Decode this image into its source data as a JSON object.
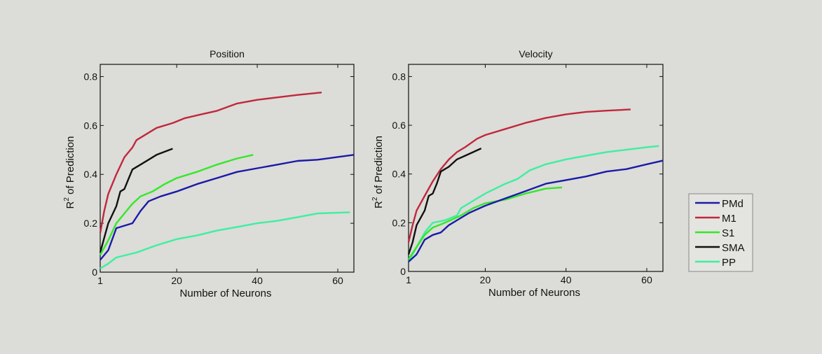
{
  "colors": {
    "PMd": "#1a1aa8",
    "M1": "#c0283c",
    "S1": "#33e82a",
    "SMA": "#111111",
    "PP": "#3cf0a0"
  },
  "legend": {
    "placement": "right",
    "entries": [
      "PMd",
      "M1",
      "S1",
      "SMA",
      "PP"
    ]
  },
  "chart_data": [
    {
      "type": "line",
      "title": "Position",
      "xlabel": "Number of Neurons",
      "ylabel": "R2 of Prediction",
      "ylabel_main": "R",
      "ylabel_sup": "2",
      "ylabel_rest": " of Prediction",
      "xlim": [
        1,
        64
      ],
      "ylim": [
        0,
        0.85
      ],
      "xticks": [
        1,
        20,
        40,
        60
      ],
      "yticks": [
        0,
        0.2,
        0.4,
        0.6,
        0.8
      ],
      "xtick_labels": [
        "1",
        "20",
        "40",
        "60"
      ],
      "ytick_labels": [
        "0",
        "0.2",
        "0.4",
        "0.6",
        "0.8"
      ],
      "grid": false,
      "series": [
        {
          "name": "M1",
          "x": [
            1,
            2,
            3,
            5,
            7,
            9,
            10,
            12,
            15,
            19,
            22,
            26,
            30,
            35,
            40,
            45,
            50,
            56
          ],
          "y": [
            0.16,
            0.25,
            0.32,
            0.4,
            0.47,
            0.51,
            0.54,
            0.56,
            0.59,
            0.61,
            0.63,
            0.645,
            0.66,
            0.69,
            0.705,
            0.715,
            0.725,
            0.735
          ]
        },
        {
          "name": "SMA",
          "x": [
            1,
            2,
            3,
            5,
            6,
            7,
            8,
            9,
            11,
            13,
            15,
            19
          ],
          "y": [
            0.08,
            0.14,
            0.2,
            0.27,
            0.33,
            0.34,
            0.38,
            0.42,
            0.44,
            0.46,
            0.48,
            0.505
          ]
        },
        {
          "name": "S1",
          "x": [
            1,
            3,
            5,
            7,
            9,
            11,
            14,
            17,
            20,
            25,
            30,
            35,
            39
          ],
          "y": [
            0.07,
            0.13,
            0.2,
            0.24,
            0.28,
            0.31,
            0.33,
            0.36,
            0.385,
            0.41,
            0.44,
            0.465,
            0.48
          ]
        },
        {
          "name": "PMd",
          "x": [
            1,
            3,
            5,
            7,
            9,
            11,
            13,
            16,
            20,
            25,
            30,
            35,
            40,
            45,
            50,
            55,
            64
          ],
          "y": [
            0.05,
            0.09,
            0.18,
            0.19,
            0.2,
            0.25,
            0.29,
            0.31,
            0.33,
            0.36,
            0.385,
            0.41,
            0.425,
            0.44,
            0.455,
            0.46,
            0.48
          ]
        },
        {
          "name": "PP",
          "x": [
            1,
            3,
            5,
            10,
            15,
            20,
            25,
            30,
            35,
            40,
            45,
            50,
            55,
            63
          ],
          "y": [
            0.015,
            0.035,
            0.06,
            0.08,
            0.11,
            0.135,
            0.15,
            0.17,
            0.185,
            0.2,
            0.21,
            0.225,
            0.24,
            0.245
          ]
        }
      ]
    },
    {
      "type": "line",
      "title": "Velocity",
      "xlabel": "Number of Neurons",
      "ylabel": "R2 of Prediction",
      "ylabel_main": "R",
      "ylabel_sup": "2",
      "ylabel_rest": " of Prediction",
      "xlim": [
        1,
        64
      ],
      "ylim": [
        0,
        0.85
      ],
      "xticks": [
        1,
        20,
        40,
        60
      ],
      "yticks": [
        0,
        0.2,
        0.4,
        0.6,
        0.8
      ],
      "xtick_labels": [
        "1",
        "20",
        "40",
        "60"
      ],
      "ytick_labels": [
        "0",
        "0.2",
        "0.4",
        "0.6",
        "0.8"
      ],
      "grid": false,
      "series": [
        {
          "name": "M1",
          "x": [
            1,
            2,
            3,
            5,
            7,
            9,
            11,
            13,
            15,
            18,
            20,
            25,
            30,
            35,
            40,
            45,
            50,
            56
          ],
          "y": [
            0.12,
            0.19,
            0.25,
            0.31,
            0.37,
            0.42,
            0.46,
            0.49,
            0.51,
            0.545,
            0.56,
            0.585,
            0.61,
            0.63,
            0.645,
            0.655,
            0.66,
            0.665
          ]
        },
        {
          "name": "SMA",
          "x": [
            1,
            2,
            3,
            5,
            6,
            7,
            8,
            9,
            11,
            13,
            15,
            17,
            19
          ],
          "y": [
            0.07,
            0.12,
            0.19,
            0.25,
            0.31,
            0.32,
            0.36,
            0.41,
            0.43,
            0.46,
            0.475,
            0.49,
            0.505
          ]
        },
        {
          "name": "PP",
          "x": [
            1,
            3,
            5,
            7,
            10,
            13,
            14,
            17,
            20,
            25,
            28,
            31,
            35,
            40,
            45,
            50,
            55,
            60,
            63
          ],
          "y": [
            0.04,
            0.1,
            0.16,
            0.2,
            0.21,
            0.23,
            0.26,
            0.29,
            0.32,
            0.36,
            0.38,
            0.415,
            0.44,
            0.46,
            0.475,
            0.49,
            0.5,
            0.51,
            0.515
          ]
        },
        {
          "name": "S1",
          "x": [
            1,
            3,
            5,
            7,
            10,
            14,
            17,
            20,
            25,
            30,
            35,
            39
          ],
          "y": [
            0.05,
            0.1,
            0.15,
            0.18,
            0.2,
            0.23,
            0.26,
            0.28,
            0.295,
            0.32,
            0.34,
            0.345
          ]
        },
        {
          "name": "PMd",
          "x": [
            1,
            3,
            5,
            7,
            9,
            11,
            13,
            16,
            20,
            25,
            30,
            35,
            40,
            45,
            50,
            55,
            60,
            64
          ],
          "y": [
            0.04,
            0.07,
            0.13,
            0.15,
            0.16,
            0.19,
            0.21,
            0.24,
            0.27,
            0.3,
            0.33,
            0.36,
            0.375,
            0.39,
            0.41,
            0.42,
            0.44,
            0.455
          ]
        }
      ]
    }
  ]
}
